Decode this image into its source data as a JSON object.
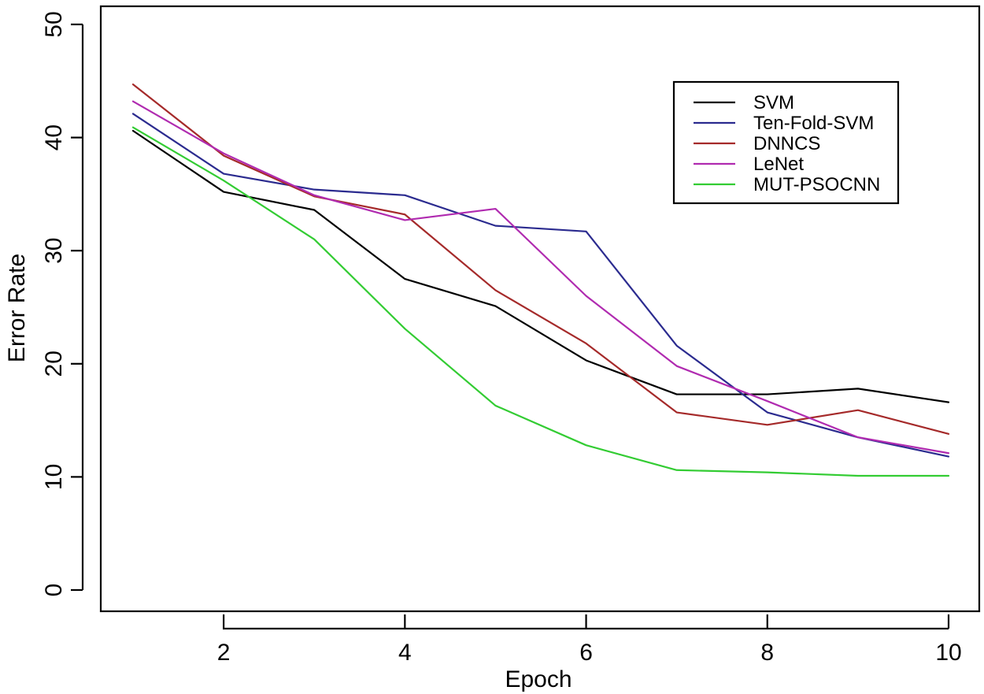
{
  "chart_data": {
    "type": "line",
    "title": "",
    "xlabel": "Epoch",
    "ylabel": "Error Rate",
    "x": [
      1,
      2,
      3,
      4,
      5,
      6,
      7,
      8,
      9,
      10
    ],
    "xlim": [
      1,
      10
    ],
    "ylim": [
      0,
      50
    ],
    "xticks": [
      2,
      4,
      6,
      8,
      10
    ],
    "yticks": [
      0,
      10,
      20,
      30,
      40,
      50
    ],
    "grid": false,
    "legend_position": "top-right",
    "series": [
      {
        "name": "SVM",
        "color": "#000000",
        "values": [
          40.6,
          35.2,
          33.6,
          27.5,
          25.1,
          20.3,
          17.3,
          17.3,
          17.8,
          16.6
        ]
      },
      {
        "name": "Ten-Fold-SVM",
        "color": "#2b2b8f",
        "values": [
          42.1,
          36.8,
          35.4,
          34.9,
          32.2,
          31.7,
          21.6,
          15.7,
          13.5,
          11.8
        ]
      },
      {
        "name": "DNNCS",
        "color": "#a52a2a",
        "values": [
          44.7,
          38.4,
          34.8,
          33.2,
          26.5,
          21.8,
          15.7,
          14.6,
          15.9,
          13.8
        ]
      },
      {
        "name": "LeNet",
        "color": "#b02bb0",
        "values": [
          43.2,
          38.6,
          34.9,
          32.7,
          33.7,
          26.0,
          19.8,
          16.7,
          13.5,
          12.1
        ]
      },
      {
        "name": "MUT-PSOCNN",
        "color": "#33cc33",
        "values": [
          40.9,
          36.2,
          31.0,
          23.1,
          16.3,
          12.8,
          10.6,
          10.4,
          10.1,
          10.1
        ]
      }
    ]
  }
}
